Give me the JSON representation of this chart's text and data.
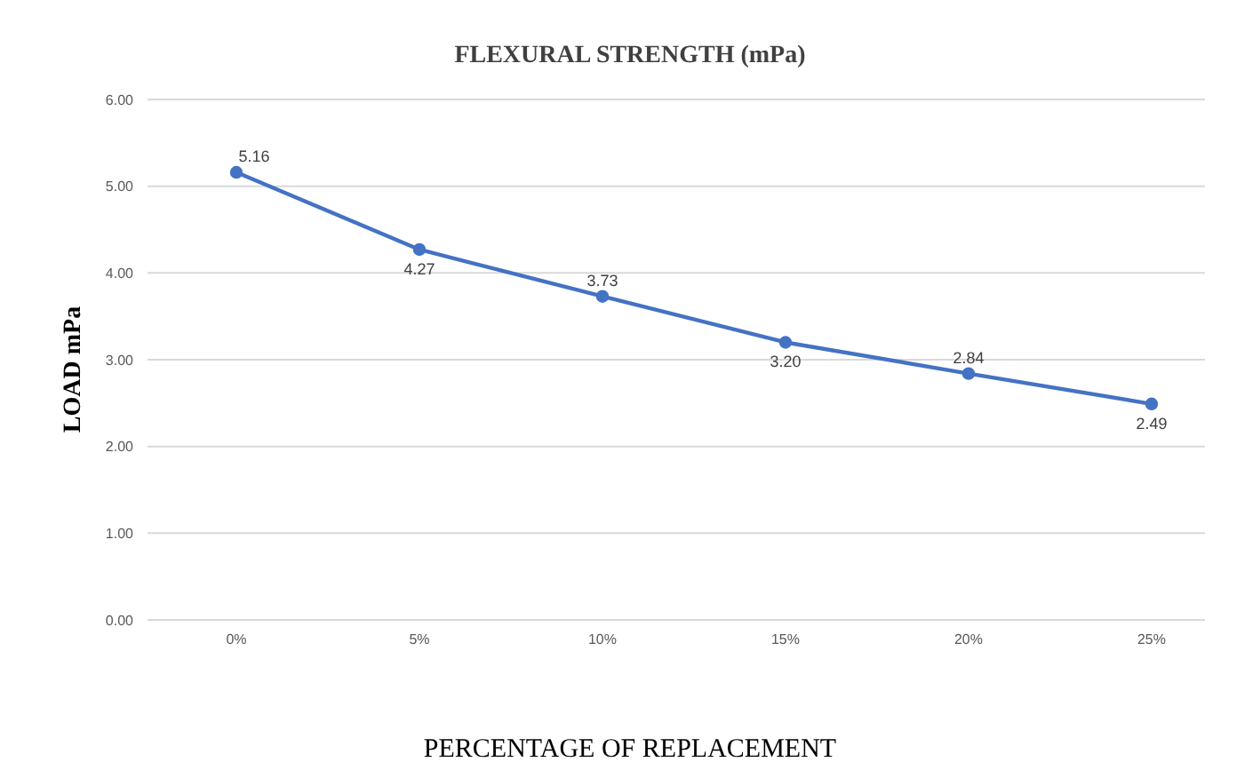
{
  "chart_data": {
    "type": "line",
    "title": "FLEXURAL STRENGTH (mPa)",
    "xlabel": "PERCENTAGE OF REPLACEMENT",
    "ylabel": "LOAD mPa",
    "categories": [
      "0%",
      "5%",
      "10%",
      "15%",
      "20%",
      "25%"
    ],
    "series": [
      {
        "color": "#4472c4",
        "values": [
          5.16,
          4.27,
          3.73,
          3.2,
          2.84,
          2.49
        ],
        "value_labels": [
          "5.16",
          "4.27",
          "3.73",
          "3.20",
          "2.84",
          "2.49"
        ]
      }
    ],
    "ylim": [
      0,
      6
    ],
    "yticks": [
      {
        "value": 0,
        "label": "0.00"
      },
      {
        "value": 1,
        "label": "1.00"
      },
      {
        "value": 2,
        "label": "2.00"
      },
      {
        "value": 3,
        "label": "3.00"
      },
      {
        "value": 4,
        "label": "4.00"
      },
      {
        "value": 5,
        "label": "5.00"
      },
      {
        "value": 6,
        "label": "6.00"
      }
    ],
    "grid": "y",
    "marker": "circle",
    "line_style": "solid",
    "legend": false
  }
}
